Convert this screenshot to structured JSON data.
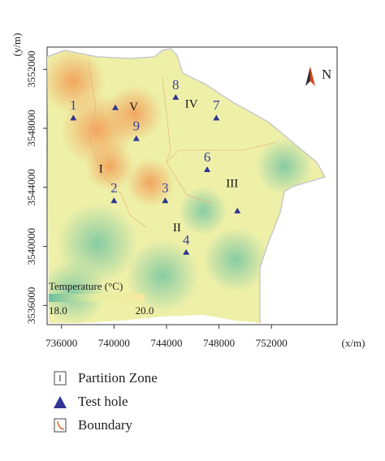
{
  "map": {
    "xlim": [
      734900,
      757000
    ],
    "ylim": [
      3534700,
      3553500
    ],
    "xticks": [
      736000,
      740000,
      744000,
      748000,
      752000
    ],
    "yticks": [
      3536000,
      3540000,
      3544000,
      3548000,
      3552000
    ],
    "x_label": "(x/m)",
    "y_label": "(y/m)",
    "north": "N",
    "test_holes": [
      {
        "label": "1",
        "x": 736900,
        "y": 3548700
      },
      {
        "x": 740100,
        "y": 3549400
      },
      {
        "label": "9",
        "x": 741700,
        "y": 3547300
      },
      {
        "label": "8",
        "x": 744700,
        "y": 3550100
      },
      {
        "label": "7",
        "x": 747800,
        "y": 3548700
      },
      {
        "label": "6",
        "x": 747100,
        "y": 3545200
      },
      {
        "label": "2",
        "x": 740000,
        "y": 3543100
      },
      {
        "label": "3",
        "x": 743900,
        "y": 3543100
      },
      {
        "x": 749400,
        "y": 3542400
      },
      {
        "label": "4",
        "x": 745500,
        "y": 3539600
      }
    ],
    "zones": [
      {
        "label": "I",
        "x": 739000,
        "y": 3545200
      },
      {
        "label": "II",
        "x": 744800,
        "y": 3541200
      },
      {
        "label": "III",
        "x": 749000,
        "y": 3544200
      },
      {
        "label": "IV",
        "x": 745900,
        "y": 3549600
      },
      {
        "label": "V",
        "x": 741500,
        "y": 3549400
      }
    ],
    "colorbar": {
      "title": "Temperature (°C)",
      "ticks": [
        {
          "value": 18,
          "label": "18.0"
        },
        {
          "value": 20,
          "label": "20.0"
        }
      ]
    }
  },
  "legend": {
    "items": [
      "Partition Zone",
      "Test hole",
      "Boundary"
    ]
  }
}
